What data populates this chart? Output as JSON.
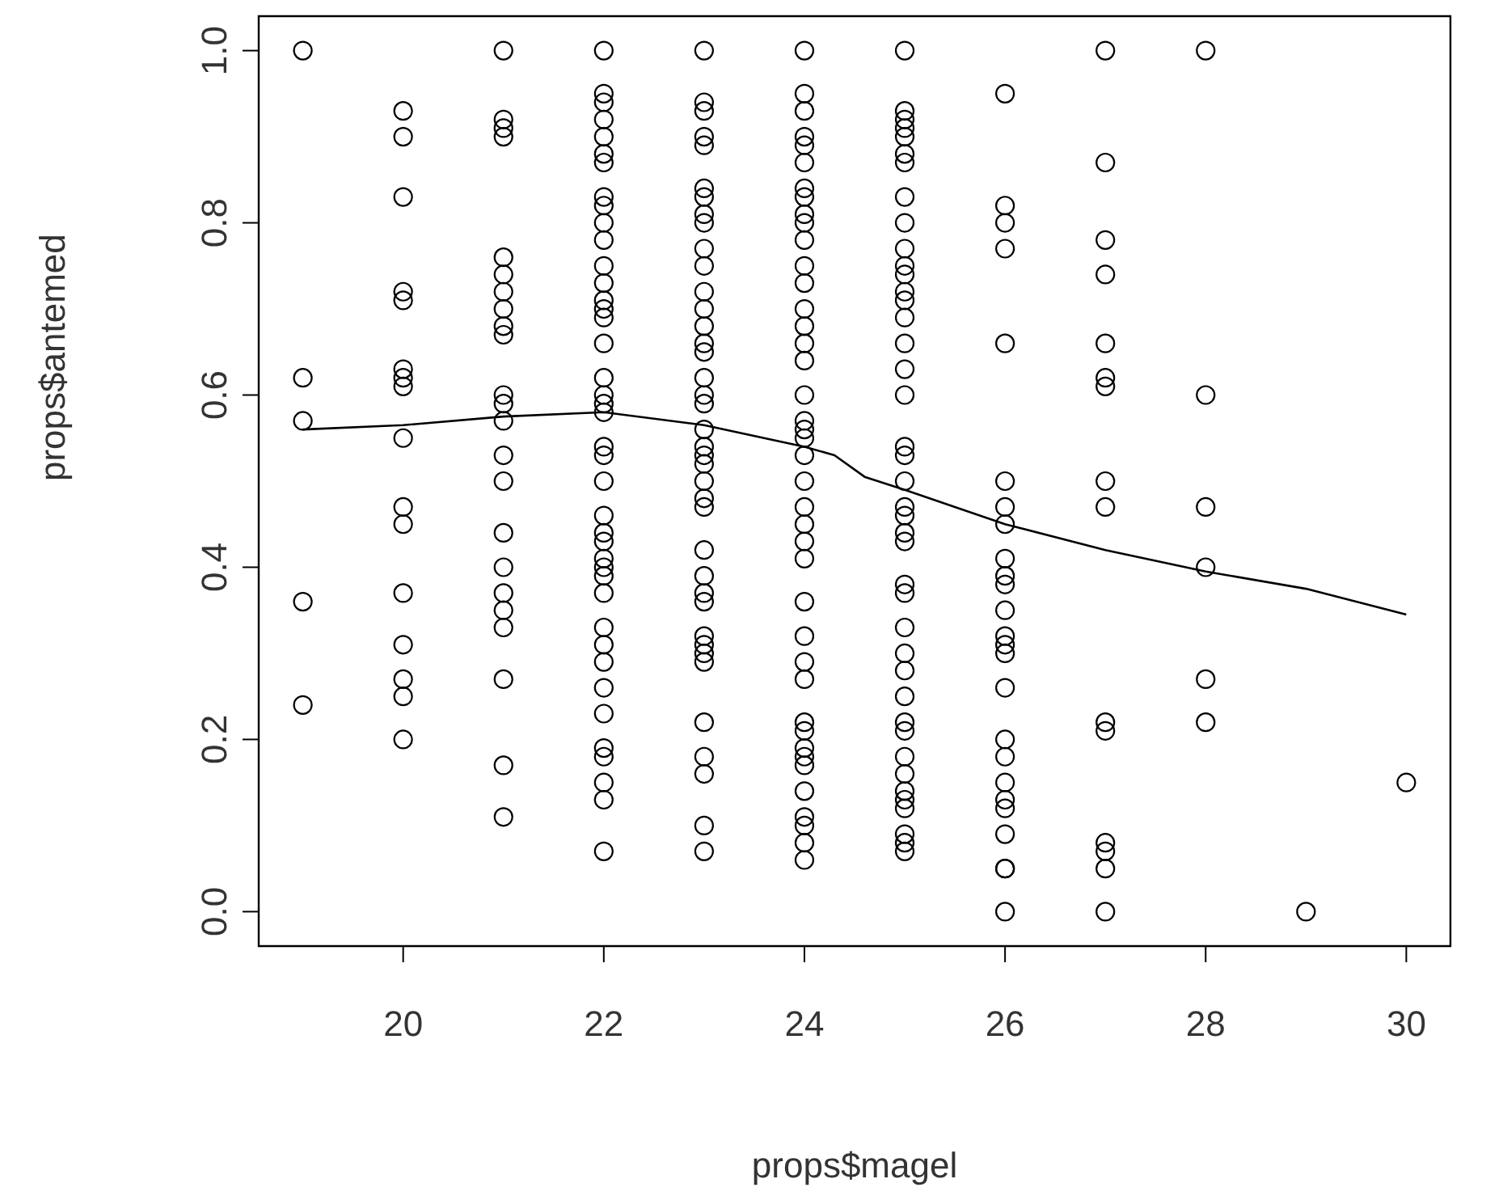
{
  "chart_data": {
    "type": "scatter",
    "xlabel": "props$magel",
    "ylabel": "props$antemed",
    "marker": "circle",
    "xlim": [
      18.56,
      30.44
    ],
    "ylim": [
      -0.04,
      1.04
    ],
    "xticks": [
      20,
      22,
      24,
      26,
      28,
      30
    ],
    "yticks": [
      {
        "value": 0,
        "label": "0.0"
      },
      {
        "value": 0.2,
        "label": "0.2"
      },
      {
        "value": 0.4,
        "label": "0.4"
      },
      {
        "value": 0.6,
        "label": "0.6"
      },
      {
        "value": 0.8,
        "label": "0.8"
      },
      {
        "value": 1,
        "label": "1.0"
      }
    ],
    "series": [
      {
        "color": "#000000",
        "x": [
          19,
          19,
          19,
          19,
          19
        ],
        "values": [
          1,
          0.62,
          0.57,
          0.36,
          0.24
        ]
      },
      {
        "color": "#000000",
        "x": [
          20,
          20,
          20,
          20,
          20,
          20,
          20,
          20,
          20,
          20,
          20,
          20,
          20,
          20,
          20,
          20
        ],
        "values": [
          0.93,
          0.9,
          0.83,
          0.72,
          0.71,
          0.63,
          0.62,
          0.61,
          0.55,
          0.47,
          0.45,
          0.37,
          0.31,
          0.27,
          0.25,
          0.2
        ]
      },
      {
        "color": "#000000",
        "x": [
          21,
          21,
          21,
          21,
          21,
          21,
          21,
          21,
          21,
          21,
          21,
          21,
          21,
          21,
          21,
          21,
          21,
          21,
          21,
          21,
          21,
          21,
          21
        ],
        "values": [
          1,
          0.92,
          0.91,
          0.9,
          0.76,
          0.74,
          0.72,
          0.7,
          0.68,
          0.67,
          0.6,
          0.59,
          0.57,
          0.53,
          0.5,
          0.44,
          0.4,
          0.37,
          0.35,
          0.33,
          0.27,
          0.17,
          0.11
        ]
      },
      {
        "color": "#000000",
        "x": [
          22,
          22,
          22,
          22,
          22,
          22,
          22,
          22,
          22,
          22,
          22,
          22,
          22,
          22,
          22,
          22,
          22,
          22,
          22,
          22,
          22,
          22,
          22,
          22,
          22,
          22,
          22,
          22,
          22,
          22,
          22,
          22,
          22,
          22,
          22,
          22,
          22,
          22,
          22,
          22,
          22
        ],
        "values": [
          1,
          0.95,
          0.94,
          0.92,
          0.9,
          0.88,
          0.87,
          0.83,
          0.82,
          0.8,
          0.78,
          0.75,
          0.73,
          0.71,
          0.7,
          0.69,
          0.66,
          0.62,
          0.6,
          0.59,
          0.58,
          0.54,
          0.53,
          0.5,
          0.46,
          0.44,
          0.43,
          0.41,
          0.4,
          0.39,
          0.37,
          0.33,
          0.31,
          0.29,
          0.26,
          0.23,
          0.19,
          0.18,
          0.15,
          0.13,
          0.07
        ]
      },
      {
        "color": "#000000",
        "x": [
          23,
          23,
          23,
          23,
          23,
          23,
          23,
          23,
          23,
          23,
          23,
          23,
          23,
          23,
          23,
          23,
          23,
          23,
          23,
          23,
          23,
          23,
          23,
          23,
          23,
          23,
          23,
          23,
          23,
          23,
          23,
          23,
          23,
          23,
          23,
          23,
          23,
          23,
          23
        ],
        "values": [
          1,
          0.94,
          0.93,
          0.9,
          0.89,
          0.84,
          0.83,
          0.81,
          0.8,
          0.77,
          0.75,
          0.72,
          0.7,
          0.68,
          0.66,
          0.65,
          0.62,
          0.6,
          0.59,
          0.56,
          0.54,
          0.53,
          0.52,
          0.5,
          0.48,
          0.47,
          0.42,
          0.39,
          0.37,
          0.36,
          0.32,
          0.31,
          0.3,
          0.29,
          0.22,
          0.18,
          0.16,
          0.1,
          0.07
        ]
      },
      {
        "color": "#000000",
        "x": [
          24,
          24,
          24,
          24,
          24,
          24,
          24,
          24,
          24,
          24,
          24,
          24,
          24,
          24,
          24,
          24,
          24,
          24,
          24,
          24,
          24,
          24,
          24,
          24,
          24,
          24,
          24,
          24,
          24,
          24,
          24,
          24,
          24,
          24,
          24,
          24,
          24,
          24,
          24,
          24,
          24
        ],
        "values": [
          1,
          0.95,
          0.93,
          0.9,
          0.89,
          0.87,
          0.84,
          0.83,
          0.81,
          0.8,
          0.78,
          0.75,
          0.73,
          0.7,
          0.68,
          0.66,
          0.64,
          0.6,
          0.57,
          0.56,
          0.55,
          0.53,
          0.5,
          0.47,
          0.45,
          0.43,
          0.41,
          0.36,
          0.32,
          0.29,
          0.27,
          0.22,
          0.21,
          0.19,
          0.18,
          0.17,
          0.14,
          0.11,
          0.1,
          0.08,
          0.06
        ]
      },
      {
        "color": "#000000",
        "x": [
          25,
          25,
          25,
          25,
          25,
          25,
          25,
          25,
          25,
          25,
          25,
          25,
          25,
          25,
          25,
          25,
          25,
          25,
          25,
          25,
          25,
          25,
          25,
          25,
          25,
          25,
          25,
          25,
          25,
          25,
          25,
          25,
          25,
          25,
          25,
          25,
          25,
          25,
          25,
          25,
          25
        ],
        "values": [
          1,
          0.93,
          0.92,
          0.91,
          0.9,
          0.88,
          0.87,
          0.83,
          0.8,
          0.77,
          0.75,
          0.74,
          0.72,
          0.71,
          0.69,
          0.66,
          0.63,
          0.6,
          0.54,
          0.53,
          0.5,
          0.47,
          0.46,
          0.44,
          0.43,
          0.38,
          0.37,
          0.33,
          0.3,
          0.28,
          0.25,
          0.22,
          0.21,
          0.18,
          0.16,
          0.14,
          0.13,
          0.12,
          0.09,
          0.08,
          0.07
        ]
      },
      {
        "color": "#000000",
        "x": [
          26,
          26,
          26,
          26,
          26,
          26,
          26,
          26,
          26,
          26,
          26,
          26,
          26,
          26,
          26,
          26,
          26,
          26,
          26,
          26,
          26,
          26,
          26,
          26,
          26
        ],
        "values": [
          0.95,
          0.82,
          0.8,
          0.77,
          0.66,
          0.5,
          0.47,
          0.45,
          0.41,
          0.39,
          0.38,
          0.35,
          0.32,
          0.31,
          0.3,
          0.26,
          0.2,
          0.18,
          0.15,
          0.13,
          0.12,
          0.09,
          0.05,
          0.05,
          0
        ]
      },
      {
        "color": "#000000",
        "x": [
          27,
          27,
          27,
          27,
          27,
          27,
          27,
          27,
          27,
          27,
          27,
          27,
          27,
          27,
          27
        ],
        "values": [
          1,
          0.87,
          0.78,
          0.74,
          0.66,
          0.62,
          0.61,
          0.5,
          0.47,
          0.22,
          0.21,
          0.08,
          0.07,
          0.05,
          0
        ]
      },
      {
        "color": "#000000",
        "x": [
          28,
          28,
          28,
          28,
          28,
          28,
          29,
          30
        ],
        "values": [
          1,
          0.6,
          0.47,
          0.4,
          0.27,
          0.22,
          0,
          0.15
        ]
      },
      {
        "type": "line",
        "marker": "none",
        "color": "#000000",
        "x": [
          19,
          20,
          21,
          22,
          23,
          24,
          24.3,
          24.6,
          25,
          26,
          27,
          28,
          29,
          30
        ],
        "values": [
          0.56,
          0.565,
          0.575,
          0.58,
          0.565,
          0.54,
          0.53,
          0.505,
          0.49,
          0.45,
          0.42,
          0.395,
          0.375,
          0.345
        ]
      }
    ]
  }
}
